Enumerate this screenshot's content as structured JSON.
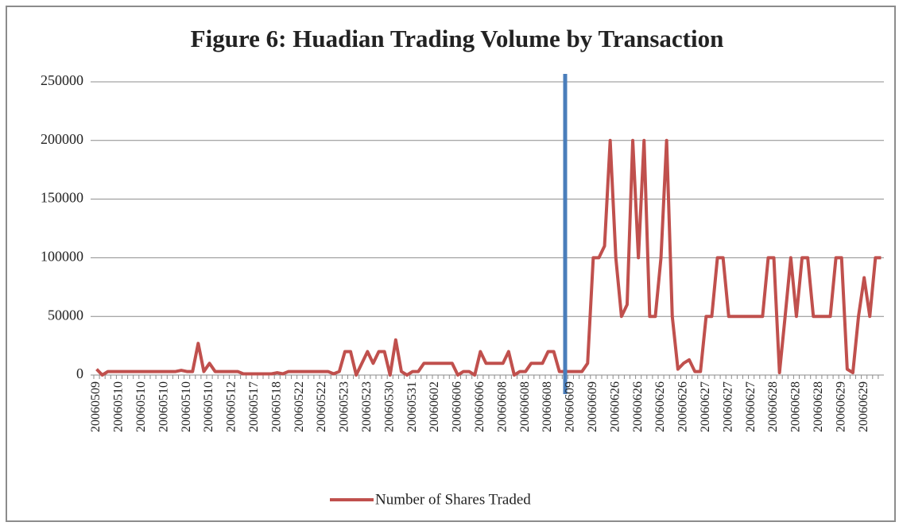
{
  "chart_data": {
    "type": "line",
    "title": "Figure 6: Huadian Trading Volume by Transaction",
    "categories": [
      "20060509",
      null,
      null,
      null,
      "20060510",
      null,
      null,
      null,
      "20060510",
      null,
      null,
      null,
      "20060510",
      null,
      null,
      null,
      "20060510",
      null,
      null,
      null,
      "20060510",
      null,
      null,
      null,
      "20060512",
      null,
      null,
      null,
      "20060517",
      null,
      null,
      null,
      "20060518",
      null,
      null,
      null,
      "20060522",
      null,
      null,
      null,
      "20060522",
      null,
      null,
      null,
      "20060523",
      null,
      null,
      null,
      "20060523",
      null,
      null,
      null,
      "20060530",
      null,
      null,
      null,
      "20060531",
      null,
      null,
      null,
      "20060602",
      null,
      null,
      null,
      "20060606",
      null,
      null,
      null,
      "20060606",
      null,
      null,
      null,
      "20060608",
      null,
      null,
      null,
      "20060608",
      null,
      null,
      null,
      "20060608",
      null,
      null,
      null,
      "20060609",
      null,
      null,
      null,
      "20060609",
      null,
      null,
      null,
      "20060626",
      null,
      null,
      null,
      "20060626",
      null,
      null,
      null,
      "20060626",
      null,
      null,
      null,
      "20060626",
      null,
      null,
      null,
      "20060627",
      null,
      null,
      null,
      "20060627",
      null,
      null,
      null,
      "20060627",
      null,
      null,
      null,
      "20060628",
      null,
      null,
      null,
      "20060628",
      null,
      null,
      null,
      "20060628",
      null,
      null,
      null,
      "20060629",
      null,
      null,
      null,
      "20060629",
      null,
      null,
      null
    ],
    "series": [
      {
        "name": "Number of Shares Traded",
        "color": "#c0504d",
        "values": [
          5000,
          0,
          3000,
          3000,
          3000,
          3000,
          3000,
          3000,
          3000,
          3000,
          3000,
          3000,
          3000,
          3000,
          3000,
          4000,
          3000,
          3000,
          27000,
          3000,
          10000,
          3000,
          3000,
          3000,
          3000,
          3000,
          1000,
          1000,
          1000,
          1000,
          1000,
          1000,
          2000,
          1000,
          3000,
          3000,
          3000,
          3000,
          3000,
          3000,
          3000,
          3000,
          1000,
          3000,
          20000,
          20000,
          0,
          10000,
          20000,
          10000,
          20000,
          20000,
          0,
          30000,
          3000,
          0,
          3000,
          3000,
          10000,
          10000,
          10000,
          10000,
          10000,
          10000,
          0,
          3000,
          3000,
          0,
          20000,
          10000,
          10000,
          10000,
          10000,
          20000,
          0,
          3000,
          3000,
          10000,
          10000,
          10000,
          20000,
          20000,
          3000,
          3000,
          3000,
          3000,
          3000,
          10000,
          100000,
          100000,
          110000,
          200000,
          100000,
          50000,
          60000,
          200000,
          100000,
          200000,
          50000,
          50000,
          100000,
          200000,
          50000,
          5000,
          10000,
          13000,
          3000,
          3000,
          50000,
          50000,
          100000,
          100000,
          50000,
          50000,
          50000,
          50000,
          50000,
          50000,
          50000,
          100000,
          100000,
          2000,
          50000,
          100000,
          50000,
          100000,
          100000,
          50000,
          50000,
          50000,
          50000,
          100000,
          100000,
          5000,
          2000,
          50000,
          83000,
          50000,
          100000,
          100000
        ]
      }
    ],
    "ylim": [
      0,
      250000
    ],
    "yticks": [
      0,
      50000,
      100000,
      150000,
      200000,
      250000
    ],
    "grid": true,
    "legend": "bottom"
  }
}
